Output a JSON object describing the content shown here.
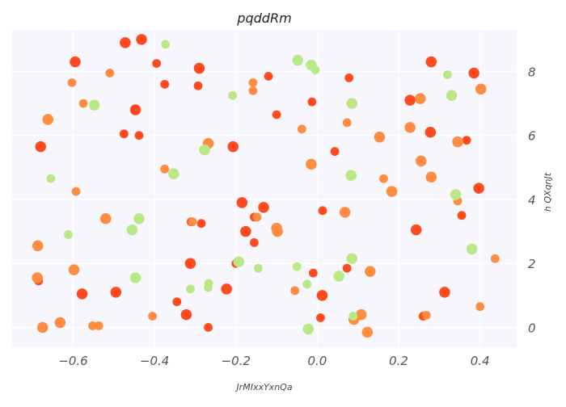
{
  "chart_data": {
    "type": "scatter",
    "title": "pqddRm",
    "xlabel": "JrMIxxYxnQa",
    "ylabel": "h QXqnJt",
    "xlim": [
      -0.75,
      0.49
    ],
    "ylim": [
      -0.62,
      9.3
    ],
    "xticks": [
      -0.6,
      -0.4,
      -0.2,
      0.0,
      0.2,
      0.4
    ],
    "xtick_labels": [
      "−0.6",
      "−0.4",
      "−0.2",
      "0.0",
      "0.2",
      "0.4"
    ],
    "yticks": [
      0,
      2,
      4,
      6,
      8
    ],
    "ytick_labels": [
      "0",
      "2",
      "4",
      "6",
      "8"
    ],
    "y_axis_side": "right",
    "grid": true,
    "background": "#f6f6fc",
    "colors": {
      "red": "#ff4a1f",
      "orange": "#ff8c40",
      "green": "#b9e887"
    },
    "series": [
      {
        "color": "red",
        "points": [
          {
            "x": -0.432,
            "y": 9.0,
            "s": 1.25
          },
          {
            "x": -0.472,
            "y": 8.9,
            "s": 1.25
          },
          {
            "x": -0.595,
            "y": 8.3,
            "s": 1.25
          },
          {
            "x": -0.395,
            "y": 8.25,
            "s": 1.0
          },
          {
            "x": -0.29,
            "y": 8.1,
            "s": 1.25
          },
          {
            "x": -0.375,
            "y": 7.6,
            "s": 1.0
          },
          {
            "x": -0.293,
            "y": 7.55,
            "s": 1.0
          },
          {
            "x": -0.12,
            "y": 7.85,
            "s": 1.0
          },
          {
            "x": 0.078,
            "y": 7.8,
            "s": 1.0
          },
          {
            "x": 0.28,
            "y": 8.3,
            "s": 1.25
          },
          {
            "x": 0.385,
            "y": 7.95,
            "s": 1.25
          },
          {
            "x": -0.447,
            "y": 6.8,
            "s": 1.25
          },
          {
            "x": -0.1,
            "y": 6.65,
            "s": 1.0
          },
          {
            "x": -0.013,
            "y": 7.05,
            "s": 1.0
          },
          {
            "x": 0.228,
            "y": 7.1,
            "s": 1.25
          },
          {
            "x": -0.475,
            "y": 6.05,
            "s": 1.0
          },
          {
            "x": -0.438,
            "y": 6.0,
            "s": 1.0
          },
          {
            "x": 0.278,
            "y": 6.1,
            "s": 1.25
          },
          {
            "x": 0.367,
            "y": 5.85,
            "s": 1.0
          },
          {
            "x": -0.68,
            "y": 5.65,
            "s": 1.25
          },
          {
            "x": -0.207,
            "y": 5.65,
            "s": 1.25
          },
          {
            "x": 0.043,
            "y": 5.5,
            "s": 1.0
          },
          {
            "x": 0.397,
            "y": 4.35,
            "s": 1.25
          },
          {
            "x": -0.185,
            "y": 3.9,
            "s": 1.25
          },
          {
            "x": -0.132,
            "y": 3.75,
            "s": 1.25
          },
          {
            "x": 0.013,
            "y": 3.65,
            "s": 1.0
          },
          {
            "x": -0.155,
            "y": 3.45,
            "s": 1.0
          },
          {
            "x": 0.355,
            "y": 3.5,
            "s": 1.0
          },
          {
            "x": -0.31,
            "y": 3.3,
            "s": 1.0
          },
          {
            "x": -0.285,
            "y": 3.25,
            "s": 1.0
          },
          {
            "x": -0.176,
            "y": 3.0,
            "s": 1.25
          },
          {
            "x": 0.243,
            "y": 3.05,
            "s": 1.25
          },
          {
            "x": -0.155,
            "y": 2.65,
            "s": 1.0
          },
          {
            "x": -0.312,
            "y": 2.0,
            "s": 1.25
          },
          {
            "x": -0.2,
            "y": 2.0,
            "s": 1.0
          },
          {
            "x": -0.01,
            "y": 1.7,
            "s": 1.0
          },
          {
            "x": 0.073,
            "y": 1.85,
            "s": 1.0
          },
          {
            "x": -0.685,
            "y": 1.45,
            "s": 1.0
          },
          {
            "x": -0.578,
            "y": 1.05,
            "s": 1.25
          },
          {
            "x": -0.495,
            "y": 1.1,
            "s": 1.25
          },
          {
            "x": -0.223,
            "y": 1.2,
            "s": 1.25
          },
          {
            "x": 0.012,
            "y": 1.0,
            "s": 1.25
          },
          {
            "x": 0.313,
            "y": 1.1,
            "s": 1.25
          },
          {
            "x": -0.345,
            "y": 0.8,
            "s": 1.0
          },
          {
            "x": -0.322,
            "y": 0.4,
            "s": 1.25
          },
          {
            "x": 0.008,
            "y": 0.3,
            "s": 1.0
          },
          {
            "x": 0.26,
            "y": 0.35,
            "s": 1.0
          },
          {
            "x": -0.268,
            "y": 0.0,
            "s": 1.0
          }
        ]
      },
      {
        "color": "orange",
        "points": [
          {
            "x": -0.603,
            "y": 7.65,
            "s": 1.0
          },
          {
            "x": -0.575,
            "y": 7.0,
            "s": 1.0
          },
          {
            "x": -0.51,
            "y": 7.95,
            "s": 1.0
          },
          {
            "x": -0.158,
            "y": 7.65,
            "s": 1.0
          },
          {
            "x": -0.158,
            "y": 7.4,
            "s": 1.0
          },
          {
            "x": 0.253,
            "y": 7.15,
            "s": 1.25
          },
          {
            "x": 0.402,
            "y": 7.45,
            "s": 1.25
          },
          {
            "x": -0.662,
            "y": 6.5,
            "s": 1.25
          },
          {
            "x": -0.038,
            "y": 6.2,
            "s": 1.0
          },
          {
            "x": 0.073,
            "y": 6.4,
            "s": 1.0
          },
          {
            "x": 0.228,
            "y": 6.25,
            "s": 1.25
          },
          {
            "x": 0.153,
            "y": 5.95,
            "s": 1.25
          },
          {
            "x": 0.345,
            "y": 5.8,
            "s": 1.25
          },
          {
            "x": -0.268,
            "y": 5.75,
            "s": 1.25
          },
          {
            "x": -0.375,
            "y": 4.95,
            "s": 1.0
          },
          {
            "x": -0.015,
            "y": 5.1,
            "s": 1.25
          },
          {
            "x": 0.255,
            "y": 5.2,
            "s": 1.25
          },
          {
            "x": 0.28,
            "y": 4.7,
            "s": 1.25
          },
          {
            "x": 0.163,
            "y": 4.65,
            "s": 1.0
          },
          {
            "x": 0.183,
            "y": 4.25,
            "s": 1.25
          },
          {
            "x": -0.593,
            "y": 4.25,
            "s": 1.0
          },
          {
            "x": 0.345,
            "y": 3.95,
            "s": 1.0
          },
          {
            "x": 0.068,
            "y": 3.6,
            "s": 1.25
          },
          {
            "x": -0.52,
            "y": 3.4,
            "s": 1.25
          },
          {
            "x": -0.307,
            "y": 3.3,
            "s": 1.0
          },
          {
            "x": -0.148,
            "y": 3.45,
            "s": 1.0
          },
          {
            "x": -0.1,
            "y": 3.1,
            "s": 1.25
          },
          {
            "x": -0.098,
            "y": 3.0,
            "s": 1.25
          },
          {
            "x": -0.687,
            "y": 2.55,
            "s": 1.25
          },
          {
            "x": 0.437,
            "y": 2.15,
            "s": 1.0
          },
          {
            "x": -0.598,
            "y": 1.8,
            "s": 1.25
          },
          {
            "x": 0.13,
            "y": 1.75,
            "s": 1.25
          },
          {
            "x": -0.688,
            "y": 1.55,
            "s": 1.25
          },
          {
            "x": -0.055,
            "y": 1.15,
            "s": 1.0
          },
          {
            "x": 0.4,
            "y": 0.65,
            "s": 1.0
          },
          {
            "x": -0.405,
            "y": 0.35,
            "s": 1.0
          },
          {
            "x": 0.09,
            "y": 0.25,
            "s": 1.25
          },
          {
            "x": 0.108,
            "y": 0.4,
            "s": 1.25
          },
          {
            "x": 0.268,
            "y": 0.38,
            "s": 1.0
          },
          {
            "x": -0.675,
            "y": 0.0,
            "s": 1.25
          },
          {
            "x": -0.632,
            "y": 0.15,
            "s": 1.25
          },
          {
            "x": -0.552,
            "y": 0.05,
            "s": 1.0
          },
          {
            "x": -0.537,
            "y": 0.05,
            "s": 1.0
          },
          {
            "x": 0.123,
            "y": -0.15,
            "s": 1.25
          }
        ]
      },
      {
        "color": "green",
        "points": [
          {
            "x": -0.373,
            "y": 8.85,
            "s": 1.0
          },
          {
            "x": -0.048,
            "y": 8.35,
            "s": 1.25
          },
          {
            "x": -0.015,
            "y": 8.2,
            "s": 1.25
          },
          {
            "x": -0.005,
            "y": 8.05,
            "s": 1.0
          },
          {
            "x": 0.32,
            "y": 7.9,
            "s": 1.0
          },
          {
            "x": -0.548,
            "y": 6.95,
            "s": 1.25
          },
          {
            "x": -0.208,
            "y": 7.25,
            "s": 1.0
          },
          {
            "x": 0.085,
            "y": 7.0,
            "s": 1.25
          },
          {
            "x": 0.33,
            "y": 7.25,
            "s": 1.25
          },
          {
            "x": -0.277,
            "y": 5.55,
            "s": 1.25
          },
          {
            "x": -0.353,
            "y": 4.8,
            "s": 1.25
          },
          {
            "x": 0.083,
            "y": 4.75,
            "s": 1.25
          },
          {
            "x": -0.655,
            "y": 4.65,
            "s": 1.0
          },
          {
            "x": 0.34,
            "y": 4.15,
            "s": 1.25
          },
          {
            "x": -0.438,
            "y": 3.4,
            "s": 1.25
          },
          {
            "x": -0.455,
            "y": 3.05,
            "s": 1.25
          },
          {
            "x": -0.612,
            "y": 2.9,
            "s": 1.0
          },
          {
            "x": 0.38,
            "y": 2.45,
            "s": 1.25
          },
          {
            "x": -0.193,
            "y": 2.05,
            "s": 1.25
          },
          {
            "x": 0.085,
            "y": 2.15,
            "s": 1.25
          },
          {
            "x": -0.145,
            "y": 1.85,
            "s": 1.0
          },
          {
            "x": -0.05,
            "y": 1.9,
            "s": 1.0
          },
          {
            "x": 0.053,
            "y": 1.6,
            "s": 1.25
          },
          {
            "x": -0.447,
            "y": 1.55,
            "s": 1.25
          },
          {
            "x": -0.267,
            "y": 1.38,
            "s": 1.0
          },
          {
            "x": -0.312,
            "y": 1.2,
            "s": 1.0
          },
          {
            "x": -0.268,
            "y": 1.25,
            "s": 1.0
          },
          {
            "x": -0.025,
            "y": 1.35,
            "s": 1.0
          },
          {
            "x": 0.088,
            "y": 0.35,
            "s": 1.0
          },
          {
            "x": -0.022,
            "y": -0.05,
            "s": 1.25
          }
        ]
      }
    ]
  }
}
